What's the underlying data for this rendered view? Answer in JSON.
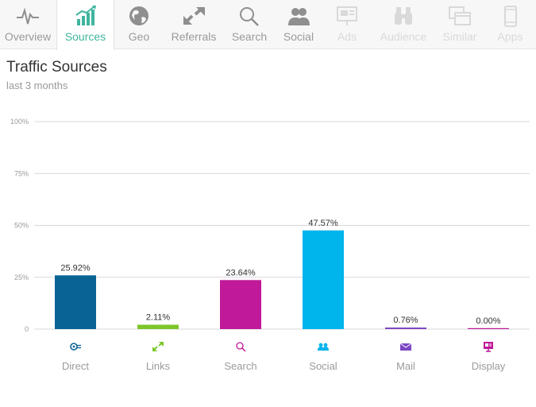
{
  "tabs": [
    {
      "label": "Overview",
      "icon": "pulse-icon",
      "active": false,
      "disabled": false
    },
    {
      "label": "Sources",
      "icon": "bar-chart-icon",
      "active": true,
      "disabled": false
    },
    {
      "label": "Geo",
      "icon": "globe-icon",
      "active": false,
      "disabled": false
    },
    {
      "label": "Referrals",
      "icon": "arrows-icon",
      "active": false,
      "disabled": false
    },
    {
      "label": "Search",
      "icon": "magnifier-icon",
      "active": false,
      "disabled": false
    },
    {
      "label": "Social",
      "icon": "people-icon",
      "active": false,
      "disabled": false
    },
    {
      "label": "Ads",
      "icon": "ad-display-icon",
      "active": false,
      "disabled": true
    },
    {
      "label": "Audience",
      "icon": "binoculars-icon",
      "active": false,
      "disabled": true
    },
    {
      "label": "Similar",
      "icon": "similar-windows-icon",
      "active": false,
      "disabled": true
    },
    {
      "label": "Apps",
      "icon": "phone-icon",
      "active": false,
      "disabled": true
    }
  ],
  "header": {
    "title": "Traffic Sources",
    "subtitle": "last 3 months"
  },
  "colors": {
    "active_tab": "#3fb59e",
    "inactive_tab": "#9a9a9a",
    "disabled_tab": "#d9d9d9",
    "grid": "#d8d8d8"
  },
  "chart_data": {
    "type": "bar",
    "title": "Traffic Sources",
    "subtitle": "last 3 months",
    "xlabel": "",
    "ylabel": "",
    "ylim": [
      0,
      100
    ],
    "yticks": [
      "0",
      "25%",
      "50%",
      "75%",
      "100%"
    ],
    "ytick_values": [
      0,
      25,
      50,
      75,
      100
    ],
    "grid": true,
    "categories": [
      "Direct",
      "Links",
      "Search",
      "Social",
      "Mail",
      "Display"
    ],
    "values": [
      25.92,
      2.11,
      23.64,
      47.57,
      0.76,
      0.0
    ],
    "value_labels": [
      "25.92%",
      "2.11%",
      "23.64%",
      "47.57%",
      "0.76%",
      "0.00%"
    ],
    "colors": [
      "#0a6395",
      "#7cc62a",
      "#c0199a",
      "#00b4ec",
      "#7d47c4",
      "#c0199a"
    ],
    "category_icons": [
      "direct-icon",
      "links-icon",
      "search-icon",
      "social-icon",
      "mail-icon",
      "display-icon"
    ]
  }
}
